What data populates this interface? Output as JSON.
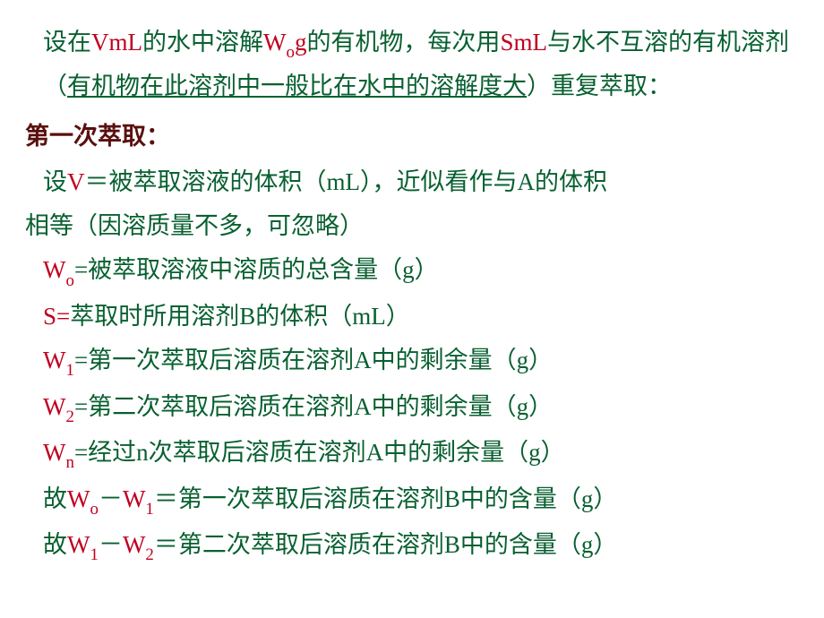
{
  "intro": {
    "t1a": "设在",
    "t1b": "VmL",
    "t1c": "的水中溶解",
    "t1d": "W",
    "t1e": "o",
    "t1f": "g",
    "t1g": "的有机物，每次用",
    "t1h": "SmL",
    "t1i": "与水不互溶的有机溶剂（",
    "t1j": "有机物在此溶剂中一般比在水中的溶解度大",
    "t1k": "）重复萃取："
  },
  "section1": "第一次萃取：",
  "line1": {
    "a": "设",
    "b": "V",
    "c": "＝被萃取溶液的体积（mL），近似看作与A的体积"
  },
  "line1b": "相等（因溶质量不多，可忽略）",
  "line2": {
    "a": "W",
    "s": "o",
    "b": "=被萃取溶液中溶质的总含量（g）"
  },
  "line3": {
    "a": "S=",
    "b": "萃取时所用溶剂B的体积（mL）"
  },
  "line4": {
    "a": "W",
    "s": "1",
    "b": "=第一次萃取后溶质在溶剂A中的剩余量（g）"
  },
  "line5": {
    "a": "W",
    "s": "2",
    "b": "=第二次萃取后溶质在溶剂A中的剩余量（g）"
  },
  "line6": {
    "a": "W",
    "s": "n",
    "b": "=经过n次萃取后溶质在溶剂A中的剩余量（g）"
  },
  "line7": {
    "p": "故",
    "a": "W",
    "s1": "o",
    "m": "－",
    "b": "W",
    "s2": "1",
    "t": "＝第一次萃取后溶质在溶剂B中的含量（g）"
  },
  "line8": {
    "p": "故",
    "a": "W",
    "s1": "1",
    "m": "－",
    "b": "W",
    "s2": "2",
    "t": "＝第二次萃取后溶质在溶剂B中的含量（g）"
  }
}
